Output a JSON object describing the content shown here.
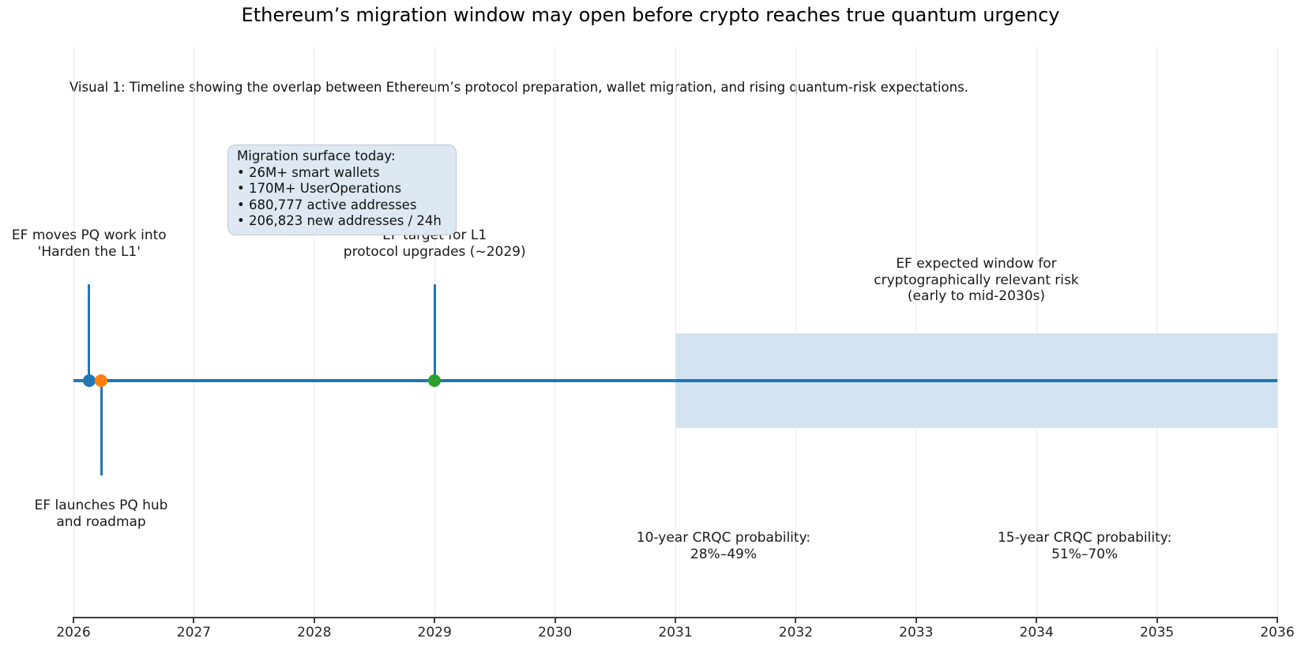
{
  "title": "Ethereum’s migration window may open before crypto reaches true quantum urgency",
  "subtitle": "Visual 1: Timeline showing the overlap between Ethereum’s protocol preparation, wallet migration, and rising quantum-risk expectations.",
  "info_box": {
    "heading": "Migration surface today:",
    "items": [
      "26M+ smart wallets",
      "170M+ UserOperations",
      "680,777 active addresses",
      "206,823 new addresses / 24h"
    ]
  },
  "colors": {
    "timeline": "#1f77b4",
    "event_ef_pq_work": "#1f77b4",
    "event_pq_hub": "#ff7f0e",
    "event_l1_target": "#2ca02c",
    "risk_band_fill": "#d3e3f0",
    "info_box_fill": "#dde8f2",
    "gridline": "#eaeaea",
    "axis": "#3d3d3d"
  },
  "chart_data": {
    "type": "timeline",
    "title": "Ethereum’s migration window may open before crypto reaches true quantum urgency",
    "xlabel": "",
    "ylabel": "",
    "x_axis": {
      "min": 2026,
      "max": 2036,
      "ticks": [
        2026,
        2027,
        2028,
        2029,
        2030,
        2031,
        2032,
        2033,
        2034,
        2035,
        2036
      ],
      "grid": true,
      "legend": "none"
    },
    "timeline_color": "#1f77b4",
    "events": [
      {
        "year": 2026.13,
        "color": "#1f77b4",
        "stem_direction": "up",
        "label_lines": [
          "EF moves PQ work into",
          "'Harden the L1'"
        ]
      },
      {
        "year": 2026.23,
        "color": "#ff7f0e",
        "stem_direction": "down",
        "label_lines": [
          "EF launches PQ hub",
          "and roadmap"
        ]
      },
      {
        "year": 2029.0,
        "color": "#2ca02c",
        "stem_direction": "up",
        "label_lines": [
          "EF target for L1",
          "protocol upgrades (~2029)"
        ]
      }
    ],
    "risk_band": {
      "start_year": 2031,
      "end_year": 2036,
      "fill_color": "#d3e3f0",
      "label_center_year": 2033.5,
      "label_lines": [
        "EF expected window for",
        "cryptographically relevant risk",
        "(early to mid-2030s)"
      ]
    },
    "annotations": [
      {
        "center_year": 2031.4,
        "lines": [
          "10-year CRQC probability:",
          "28%–49%"
        ]
      },
      {
        "center_year": 2034.4,
        "lines": [
          "15-year CRQC probability:",
          "51%–70%"
        ]
      }
    ]
  }
}
